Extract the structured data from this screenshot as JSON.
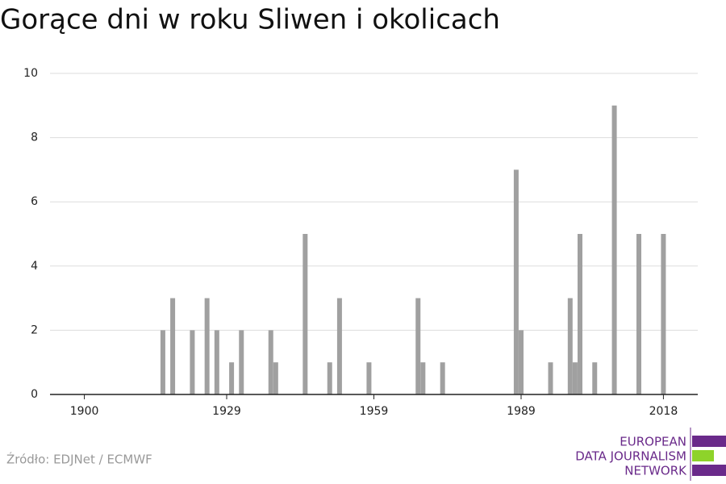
{
  "chart_data": {
    "type": "bar",
    "title": "Gorące dni w roku Sliwen i okolicach",
    "x": [
      1916,
      1918,
      1922,
      1925,
      1927,
      1930,
      1932,
      1938,
      1939,
      1945,
      1950,
      1952,
      1958,
      1968,
      1969,
      1973,
      1988,
      1989,
      1995,
      1999,
      2000,
      2001,
      2004,
      2008,
      2013,
      2018
    ],
    "values": [
      2,
      3,
      2,
      3,
      2,
      1,
      2,
      2,
      1,
      5,
      1,
      3,
      1,
      3,
      1,
      1,
      7,
      2,
      1,
      3,
      1,
      5,
      1,
      9,
      5,
      5
    ],
    "color": "#a0a0a0",
    "xlim": [
      1893,
      2025
    ],
    "xticks": [
      1900,
      1929,
      1959,
      1989,
      2018
    ],
    "ylim": [
      0,
      10
    ],
    "yticks": [
      0,
      2,
      4,
      6,
      8,
      10
    ],
    "grid": true
  },
  "footer": {
    "source": "Źródło: EDJNet / ECMWF",
    "logo": [
      "EUROPEAN",
      "DATA JOURNALISM",
      "NETWORK"
    ]
  }
}
